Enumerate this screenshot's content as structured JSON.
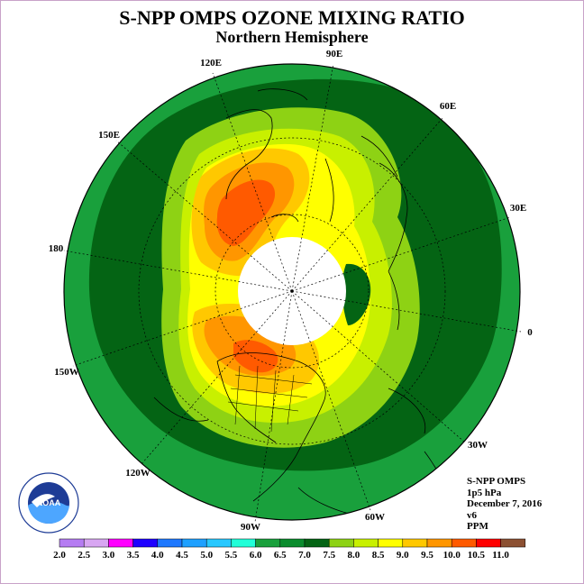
{
  "header": {
    "title": "S-NPP OMPS OZONE MIXING RATIO",
    "subtitle": "Northern Hemisphere"
  },
  "longitude_labels": [
    "90E",
    "60E",
    "30E",
    "0",
    "30W",
    "60W",
    "90W",
    "120W",
    "150W",
    "180",
    "150E",
    "120E"
  ],
  "info": {
    "instrument": "S-NPP OMPS",
    "level": "1p5 hPa",
    "date": "December 7, 2016",
    "version": "v6",
    "units": "PPM"
  },
  "legend": {
    "ticks": [
      "2.0",
      "2.5",
      "3.0",
      "3.5",
      "4.0",
      "4.5",
      "5.0",
      "5.5",
      "6.0",
      "6.5",
      "7.0",
      "7.5",
      "8.0",
      "8.5",
      "9.0",
      "9.5",
      "10.0",
      "10.5",
      "11.0"
    ],
    "colors": [
      "#b57cf2",
      "#d8a6f2",
      "#ff00ff",
      "#1e00ff",
      "#1e78ff",
      "#1ea0ff",
      "#28c8ff",
      "#21ffd8",
      "#19a03c",
      "#0a8c2d",
      "#046414",
      "#8ed214",
      "#c8f000",
      "#ffff00",
      "#ffc800",
      "#ff9600",
      "#ff5a00",
      "#ff0000",
      "#8c5032"
    ]
  },
  "logo": {
    "text": "NOAA",
    "ring_text": "NATIONAL OCEANIC AND ATMOSPHERIC ADMINISTRATION · U.S. DEPARTMENT OF COMMERCE"
  },
  "colors": {
    "background_ring": "#19a03c",
    "dark_band": "#046414",
    "polar_cap": "#ffffff"
  }
}
